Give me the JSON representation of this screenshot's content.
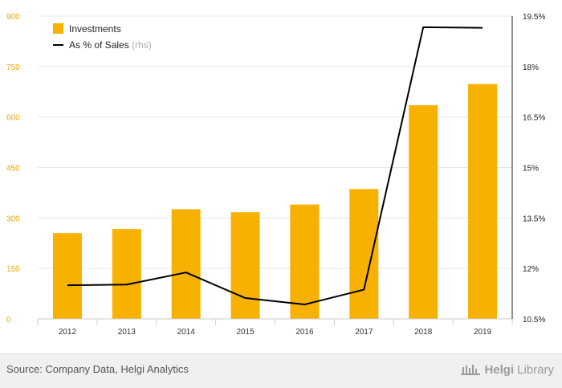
{
  "chart_data": {
    "type": "bar",
    "categories": [
      "2012",
      "2013",
      "2014",
      "2015",
      "2016",
      "2017",
      "2018",
      "2019"
    ],
    "series": [
      {
        "name": "Investments",
        "type": "bar",
        "axis": "left",
        "color": "#f7b100",
        "values": [
          255,
          267,
          326,
          317,
          340,
          386,
          635,
          698
        ]
      },
      {
        "name": "As % of Sales",
        "name_suffix": "(rhs)",
        "type": "line",
        "axis": "right",
        "color": "#000000",
        "values": [
          11.5,
          11.52,
          11.88,
          11.12,
          10.93,
          11.37,
          19.17,
          19.15
        ]
      }
    ],
    "ylim_left": [
      0,
      900
    ],
    "ylim_right": [
      10.5,
      19.5
    ],
    "yticks_left": [
      "0",
      "150",
      "300",
      "450",
      "600",
      "750",
      "900"
    ],
    "yticks_right": [
      "10.5%",
      "12%",
      "13.5%",
      "15%",
      "16.5%",
      "18%",
      "19.5%"
    ],
    "grid": true,
    "legend_position": "top-left",
    "title": "",
    "xlabel": "",
    "ylabel": ""
  },
  "colors": {
    "bar": "#f7b100",
    "line": "#000000",
    "left_axis_text": "#f0a800",
    "grid": "#e6e6e6"
  },
  "footer": {
    "source": "Source: Company Data, Helgi Analytics",
    "brand_part1": "Helgi",
    "brand_part2": "Library",
    "brand_icon": "library-icon"
  }
}
